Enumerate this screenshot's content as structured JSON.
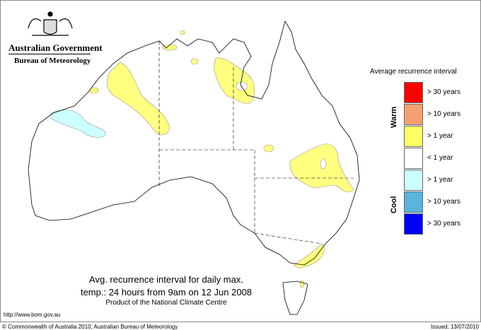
{
  "header": {
    "agency_line1": "Australian Government",
    "agency_line2": "Bureau of Meteorology"
  },
  "title": {
    "line1": "Avg. recurrence interval for daily max.",
    "line2": "temp.: 24 hours from 9am on 12 Jun 2008",
    "line3": "Product of the National Climate Centre"
  },
  "footer": {
    "url": "http://www.bom.gov.au",
    "copyright": "© Commonwealth of Australia 2010, Australian Bureau of Meteorology",
    "issued": "Issued: 13/07/2010"
  },
  "legend": {
    "title": "Average recurrence interval",
    "warm_label": "Warm",
    "cool_label": "Cool",
    "items": [
      {
        "label": "> 30 years",
        "color": "#ff0000"
      },
      {
        "label": "> 10 years",
        "color": "#f4a070"
      },
      {
        "label": "> 1 year",
        "color": "#ffff66"
      },
      {
        "label": "< 1 year",
        "color": "#ffffff"
      },
      {
        "label": "> 1 year",
        "color": "#ccffff"
      },
      {
        "label": "> 10 years",
        "color": "#5ab4dc"
      },
      {
        "label": "> 30 years",
        "color": "#0000ff"
      }
    ]
  }
}
